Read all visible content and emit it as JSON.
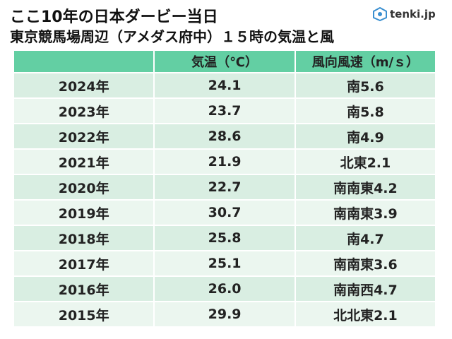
{
  "header": {
    "title": "ここ10年の日本ダービー当日",
    "subtitle": "東京競馬場周辺（アメダス府中）１５時の気温と風",
    "logo": "tenki.jp"
  },
  "table": {
    "columns": [
      "気温（℃）",
      "風向風速（m/ｓ）"
    ],
    "rows": [
      [
        "2024年",
        "24.1",
        "南5.6"
      ],
      [
        "2023年",
        "23.7",
        "南5.8"
      ],
      [
        "2022年",
        "28.6",
        "南4.9"
      ],
      [
        "2021年",
        "21.9",
        "北東2.1"
      ],
      [
        "2020年",
        "22.7",
        "南南東4.2"
      ],
      [
        "2019年",
        "30.7",
        "南南東3.9"
      ],
      [
        "2018年",
        "25.8",
        "南4.7"
      ],
      [
        "2017年",
        "25.1",
        "南南東3.6"
      ],
      [
        "2016年",
        "26.0",
        "南南西4.7"
      ],
      [
        "2015年",
        "29.9",
        "北北東2.1"
      ]
    ]
  }
}
